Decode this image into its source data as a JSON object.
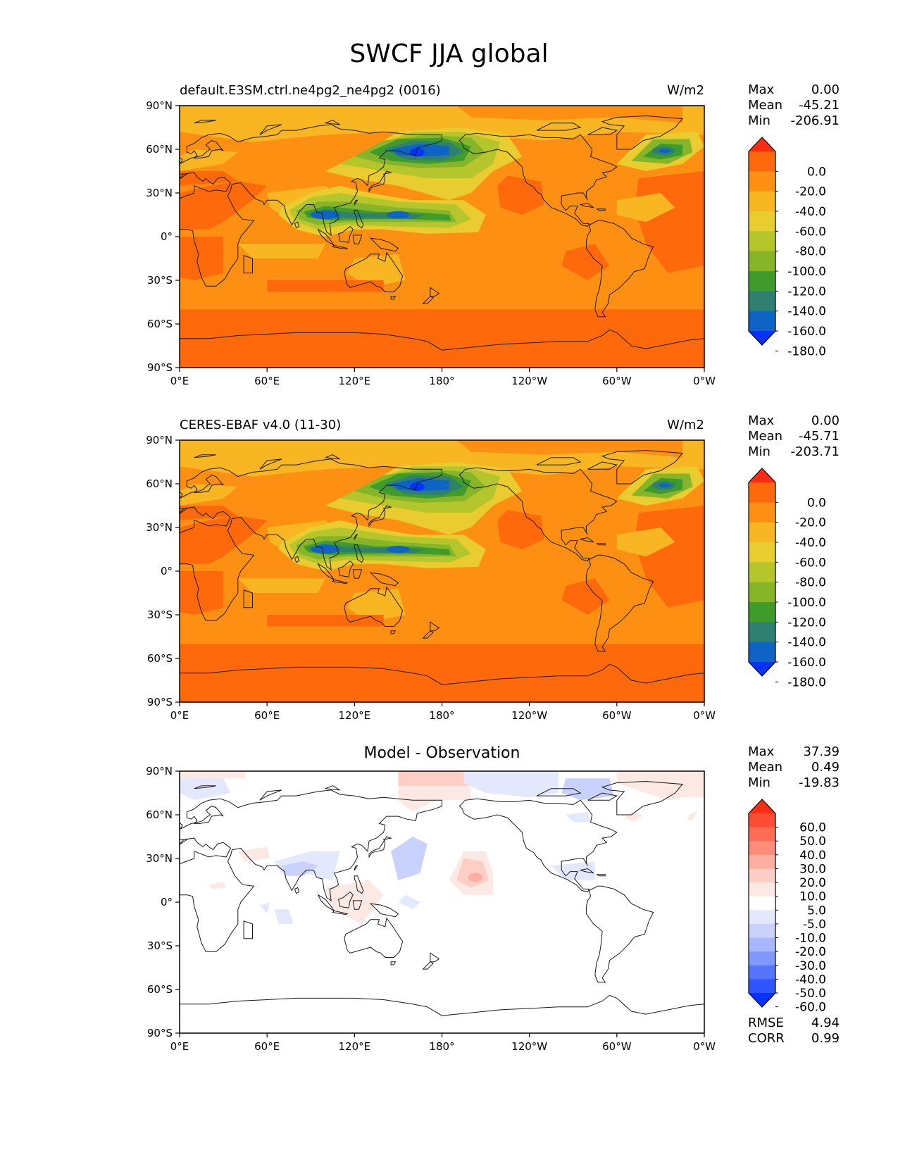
{
  "title": "SWCF JJA global",
  "axes": {
    "lat_ticks": [
      "90°N",
      "60°N",
      "30°N",
      "0°",
      "30°S",
      "60°S",
      "90°S"
    ],
    "lon_ticks": [
      "0°E",
      "60°E",
      "120°E",
      "180°",
      "120°W",
      "60°W",
      "0°W"
    ]
  },
  "panels": [
    {
      "title": "default.E3SM.ctrl.ne4pg2_ne4pg2 (0016)",
      "units": "W/m2",
      "stats": [
        {
          "label": "Max",
          "value": "0.00"
        },
        {
          "label": "Mean",
          "value": "-45.21"
        },
        {
          "label": "Min",
          "value": "-206.91"
        }
      ],
      "colorbar": {
        "labels": [
          "0.0",
          "-20.0",
          "-40.0",
          "-60.0",
          "-80.0",
          "-100.0",
          "-120.0",
          "-140.0",
          "-160.0",
          "-180.0"
        ],
        "colors": [
          "#fe2b12",
          "#fe6a0b",
          "#fd9012",
          "#f8b622",
          "#e8cc30",
          "#b5c52c",
          "#87b52a",
          "#3e9b2c",
          "#2f8070",
          "#0e64c5",
          "#0633fa"
        ]
      }
    },
    {
      "title": "CERES-EBAF v4.0 (11-30)",
      "units": "W/m2",
      "stats": [
        {
          "label": "Max",
          "value": "0.00"
        },
        {
          "label": "Mean",
          "value": "-45.71"
        },
        {
          "label": "Min",
          "value": "-203.71"
        }
      ],
      "colorbar": {
        "labels": [
          "0.0",
          "-20.0",
          "-40.0",
          "-60.0",
          "-80.0",
          "-100.0",
          "-120.0",
          "-140.0",
          "-160.0",
          "-180.0"
        ],
        "colors": [
          "#fe2b12",
          "#fe6a0b",
          "#fd9012",
          "#f8b622",
          "#e8cc30",
          "#b5c52c",
          "#87b52a",
          "#3e9b2c",
          "#2f8070",
          "#0e64c5",
          "#0633fa"
        ]
      }
    },
    {
      "title": "Model - Observation",
      "units": "",
      "stats": [
        {
          "label": "Max",
          "value": "37.39"
        },
        {
          "label": "Mean",
          "value": "0.49"
        },
        {
          "label": "Min",
          "value": "-19.83"
        }
      ],
      "extra_stats": [
        {
          "label": "RMSE",
          "value": "4.94"
        },
        {
          "label": "CORR",
          "value": "0.99"
        }
      ],
      "colorbar": {
        "labels": [
          "60.0",
          "50.0",
          "40.0",
          "30.0",
          "20.0",
          "10.0",
          "5.0",
          "-5.0",
          "-10.0",
          "-20.0",
          "-30.0",
          "-40.0",
          "-50.0",
          "-60.0"
        ],
        "colors": [
          "#fe2d15",
          "#fe4d35",
          "#fd6d55",
          "#fd8d78",
          "#fdae9e",
          "#fdcec3",
          "#fde9e4",
          "#ffffff",
          "#e3e8fd",
          "#c8d2fd",
          "#a8b8fd",
          "#8099fc",
          "#5576fc",
          "#2f55fc",
          "#0533fa"
        ]
      }
    }
  ]
}
